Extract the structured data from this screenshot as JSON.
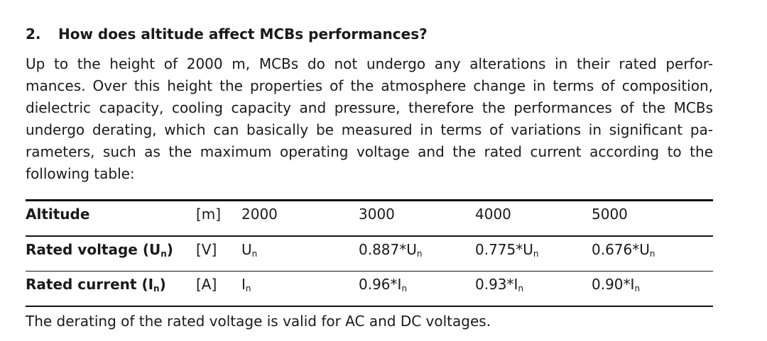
{
  "section": {
    "number": "2.",
    "title": "How does altitude affect MCBs performances?"
  },
  "paragraph": {
    "lines": [
      "Up to the height of 2000 m, MCBs do not undergo any alterations in their rated perfor-",
      "mances. Over this height the properties of the atmosphere change in terms of composition,",
      "dielectric capacity, cooling capacity and pressure, therefore the performances of the MCBs",
      "undergo derating, which can basically be measured in terms of variations in significant pa-",
      "rameters, such as the maximum operating voltage and the rated current according to the",
      "following table:"
    ]
  },
  "table": {
    "rows": [
      {
        "label": "Altitude",
        "label_sub": "",
        "label_close": "",
        "unit": "[m]",
        "values": [
          {
            "main": "2000",
            "sub": ""
          },
          {
            "main": "3000",
            "sub": ""
          },
          {
            "main": "4000",
            "sub": ""
          },
          {
            "main": "5000",
            "sub": ""
          }
        ]
      },
      {
        "label": "Rated voltage (U",
        "label_sub": "n",
        "label_close": ")",
        "unit": "[V]",
        "values": [
          {
            "main": "U",
            "sub": "n"
          },
          {
            "main": "0.887*U",
            "sub": "n"
          },
          {
            "main": "0.775*U",
            "sub": "n"
          },
          {
            "main": "0.676*U",
            "sub": "n"
          }
        ]
      },
      {
        "label": "Rated current (I",
        "label_sub": "n",
        "label_close": ")",
        "unit": "[A]",
        "values": [
          {
            "main": "I",
            "sub": "n"
          },
          {
            "main": "0.96*I",
            "sub": "n"
          },
          {
            "main": "0.93*I",
            "sub": "n"
          },
          {
            "main": "0.90*I",
            "sub": "n"
          }
        ]
      }
    ],
    "note": "The derating of the rated voltage is valid for AC and DC voltages."
  }
}
